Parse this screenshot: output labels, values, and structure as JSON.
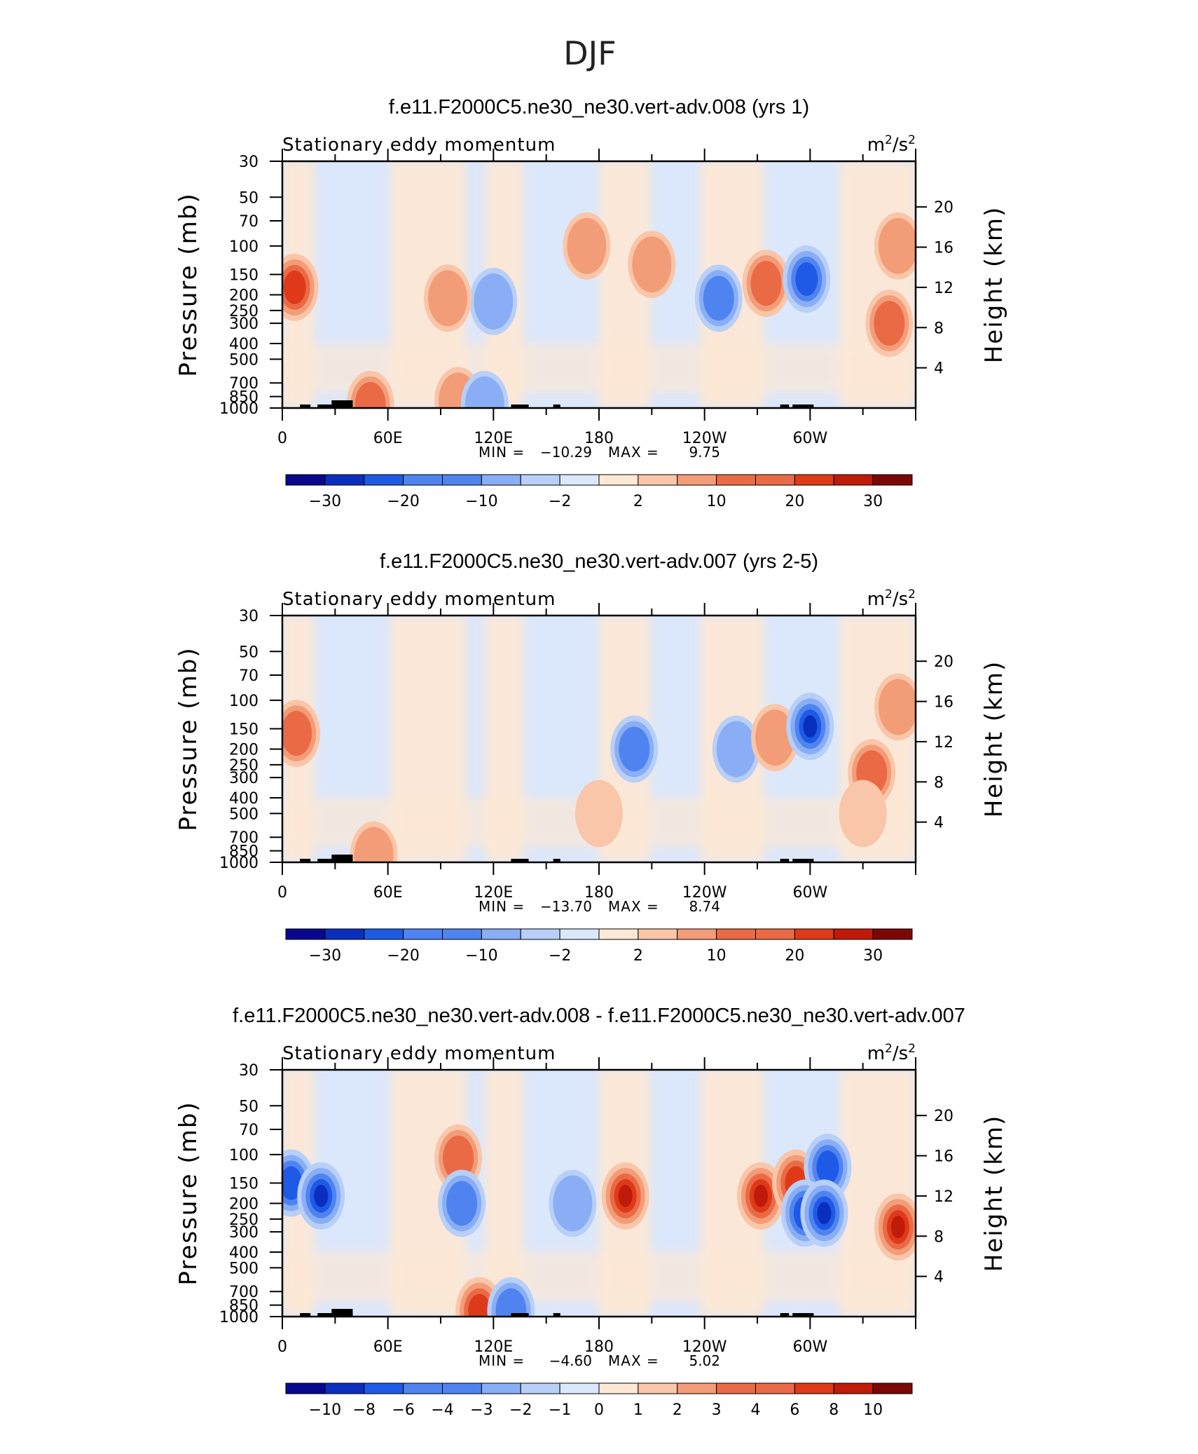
{
  "figure": {
    "title": "DJF"
  },
  "axes": {
    "variable_label": "Stationary eddy momentum",
    "units_base": "m",
    "units_exp": "2",
    "units_sep": "/",
    "units_base2": "s",
    "units_exp2": "2",
    "ylabel_left": "Pressure (mb)",
    "ylabel_right": "Height (km)",
    "pressure_ticks": [
      "30",
      "50",
      "70",
      "100",
      "150",
      "200",
      "250",
      "300",
      "400",
      "500",
      "700",
      "850",
      "1000"
    ],
    "height_ticks": [
      "20",
      "16",
      "12",
      "8",
      "4"
    ],
    "x_ticks": [
      "0",
      "60E",
      "120E",
      "180",
      "120W",
      "60W"
    ],
    "min_label": "MIN =",
    "max_label": "MAX ="
  },
  "palette": [
    "#08088f",
    "#0a2fbf",
    "#1e5ae6",
    "#4f84f0",
    "#8aaef5",
    "#b8cff7",
    "#dbe7fb",
    "#fde8d6",
    "#f9c6a9",
    "#f39c78",
    "#ea6a45",
    "#de3a1a",
    "#c01b08",
    "#7c0707"
  ],
  "chart_data": [
    {
      "type": "heatmap",
      "subtitle": "f.e11.F2000C5.ne30_ne30.vert-adv.008 (yrs 1)",
      "min": "−10.29",
      "max": "9.75",
      "colorbar_labels": [
        "−30",
        "−20",
        "−10",
        "−2",
        "2",
        "10",
        "20",
        "30"
      ],
      "features": [
        {
          "lon": 7,
          "p": 180,
          "v": 9
        },
        {
          "lon": 120,
          "p": 220,
          "v": -3
        },
        {
          "lon": 94,
          "p": 210,
          "v": 3
        },
        {
          "lon": 173,
          "p": 100,
          "v": 3
        },
        {
          "lon": 210,
          "p": 130,
          "v": 4
        },
        {
          "lon": 248,
          "p": 210,
          "v": -6
        },
        {
          "lon": 275,
          "p": 170,
          "v": 8
        },
        {
          "lon": 298,
          "p": 160,
          "v": -10
        },
        {
          "lon": 345,
          "p": 300,
          "v": 6
        },
        {
          "lon": 350,
          "p": 100,
          "v": 4
        },
        {
          "lon": 50,
          "p": 950,
          "v": 6
        },
        {
          "lon": 100,
          "p": 900,
          "v": 4
        },
        {
          "lon": 115,
          "p": 950,
          "v": -3
        }
      ]
    },
    {
      "type": "heatmap",
      "subtitle": "f.e11.F2000C5.ne30_ne30.vert-adv.007 (yrs 2-5)",
      "min": "−13.70",
      "max": "8.74",
      "colorbar_labels": [
        "−30",
        "−20",
        "−10",
        "−2",
        "2",
        "10",
        "20",
        "30"
      ],
      "features": [
        {
          "lon": 8,
          "p": 160,
          "v": 8
        },
        {
          "lon": 200,
          "p": 200,
          "v": -6
        },
        {
          "lon": 258,
          "p": 200,
          "v": -5
        },
        {
          "lon": 280,
          "p": 170,
          "v": 5
        },
        {
          "lon": 300,
          "p": 145,
          "v": -13
        },
        {
          "lon": 335,
          "p": 280,
          "v": 6
        },
        {
          "lon": 350,
          "p": 110,
          "v": 3
        },
        {
          "lon": 52,
          "p": 900,
          "v": 5
        },
        {
          "lon": 180,
          "p": 500,
          "v": 2
        },
        {
          "lon": 330,
          "p": 500,
          "v": 2
        }
      ]
    },
    {
      "type": "heatmap",
      "subtitle": "f.e11.F2000C5.ne30_ne30.vert-adv.008 - f.e11.F2000C5.ne30_ne30.vert-adv.007",
      "min": "−4.60",
      "max": "5.02",
      "colorbar_labels": [
        "−10",
        "−8",
        "−6",
        "−4",
        "−3",
        "−2",
        "−1",
        "0",
        "1",
        "2",
        "3",
        "4",
        "6",
        "8",
        "10"
      ],
      "features": [
        {
          "lon": 5,
          "p": 150,
          "v": -3
        },
        {
          "lon": 22,
          "p": 180,
          "v": -4
        },
        {
          "lon": 100,
          "p": 105,
          "v": 2
        },
        {
          "lon": 102,
          "p": 200,
          "v": -2.5
        },
        {
          "lon": 165,
          "p": 200,
          "v": -1.5
        },
        {
          "lon": 195,
          "p": 180,
          "v": 5
        },
        {
          "lon": 272,
          "p": 180,
          "v": 4.5
        },
        {
          "lon": 292,
          "p": 150,
          "v": 3
        },
        {
          "lon": 310,
          "p": 120,
          "v": -3
        },
        {
          "lon": 297,
          "p": 230,
          "v": -3.5
        },
        {
          "lon": 308,
          "p": 230,
          "v": -4.5
        },
        {
          "lon": 350,
          "p": 280,
          "v": 4
        },
        {
          "lon": 112,
          "p": 920,
          "v": 3
        },
        {
          "lon": 130,
          "p": 920,
          "v": -2
        }
      ]
    }
  ]
}
